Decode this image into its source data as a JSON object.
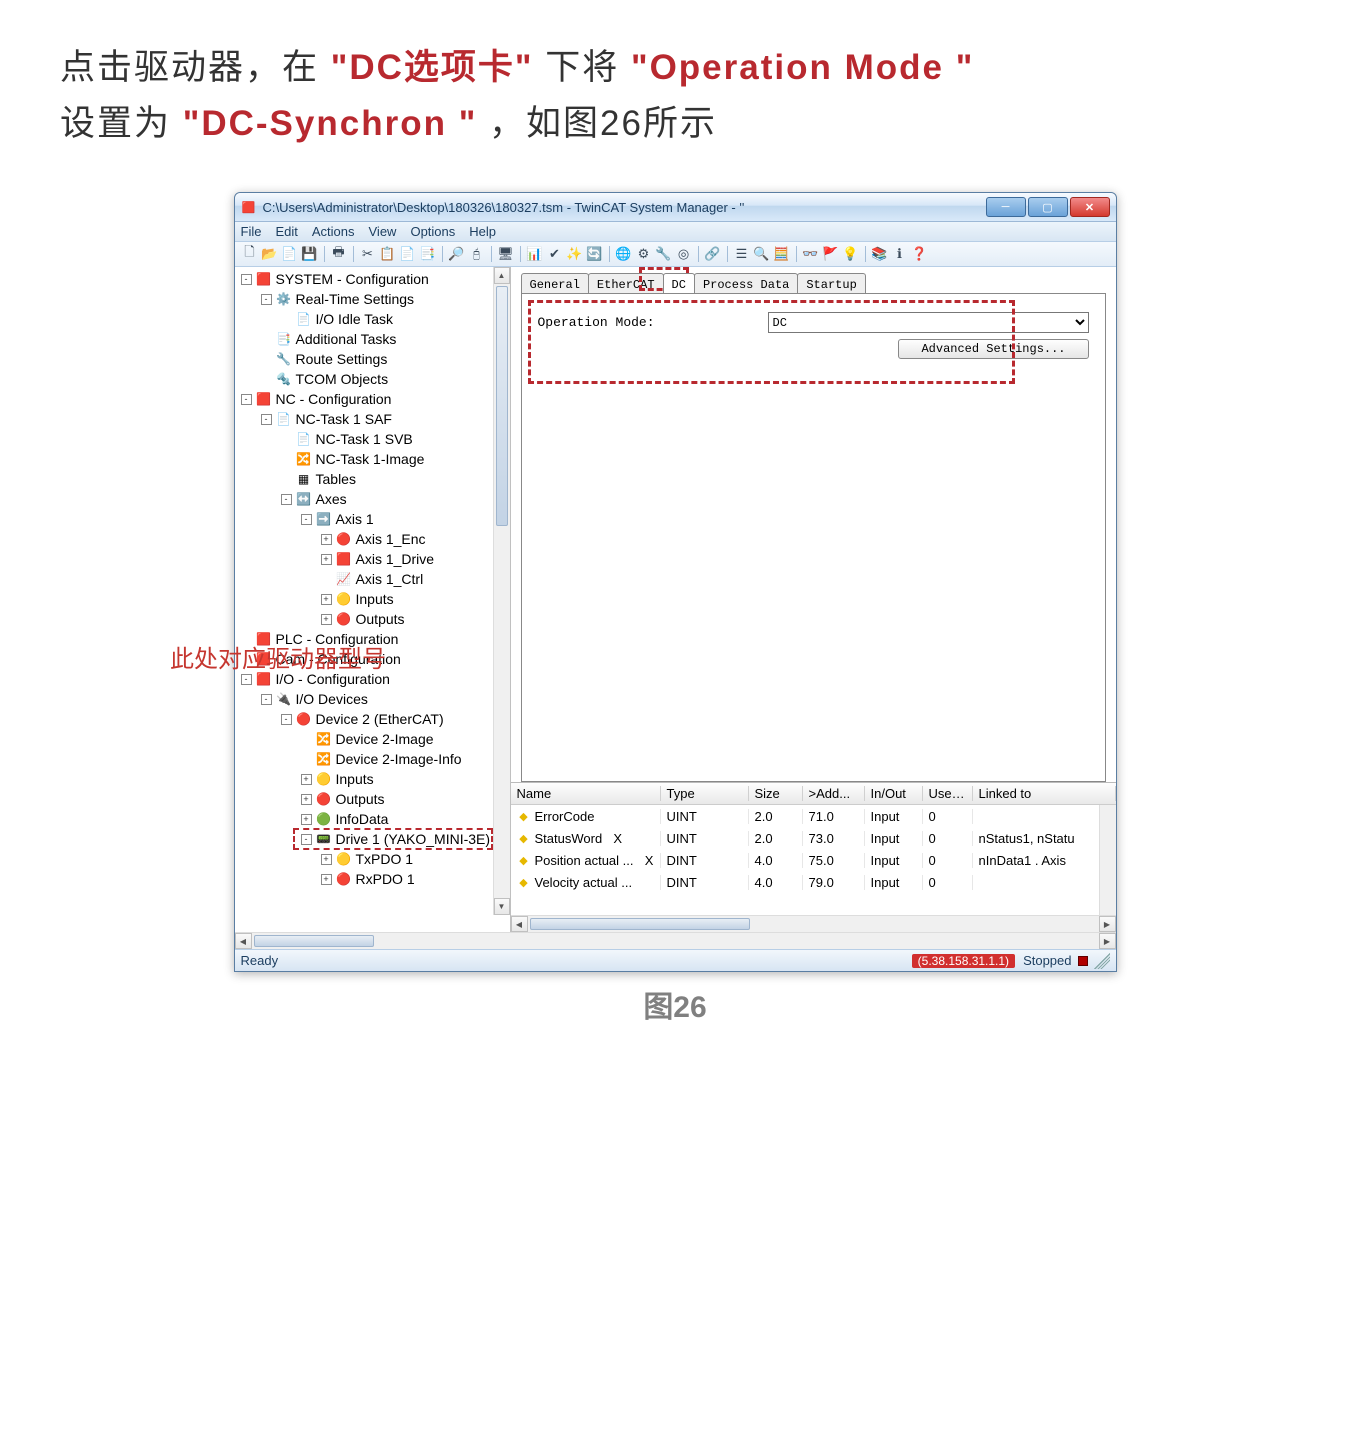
{
  "instruction": {
    "p1a": "点击驱动器，在",
    "p1b": "\"DC选项卡\"",
    "p1c": "下将",
    "p1d": "\"Operation Mode \"",
    "p2a": "设置为",
    "p2b": "\"DC-Synchron \"",
    "p2c": "，如图26所示"
  },
  "caption": "图26",
  "window": {
    "title": "C:\\Users\\Administrator\\Desktop\\180326\\180327.tsm - TwinCAT System Manager - ''",
    "menus": [
      "File",
      "Edit",
      "Actions",
      "View",
      "Options",
      "Help"
    ],
    "status_ready": "Ready",
    "status_addr": "(5.38.158.31.1.1)",
    "status_state": "Stopped"
  },
  "tree": [
    {
      "i": 1,
      "pm": "-",
      "icon": "🟥",
      "label": "SYSTEM - Configuration"
    },
    {
      "i": 2,
      "pm": "-",
      "icon": "⚙️",
      "label": "Real-Time Settings"
    },
    {
      "i": 3,
      "pm": "",
      "icon": "📄",
      "label": "I/O Idle Task"
    },
    {
      "i": 2,
      "pm": "",
      "icon": "📑",
      "label": "Additional Tasks"
    },
    {
      "i": 2,
      "pm": "",
      "icon": "🔧",
      "label": "Route Settings"
    },
    {
      "i": 2,
      "pm": "",
      "icon": "🔩",
      "label": "TCOM Objects"
    },
    {
      "i": 1,
      "pm": "-",
      "icon": "🟥",
      "label": "NC - Configuration"
    },
    {
      "i": 2,
      "pm": "-",
      "icon": "📄",
      "label": "NC-Task 1 SAF"
    },
    {
      "i": 3,
      "pm": "",
      "icon": "📄",
      "label": "NC-Task 1 SVB"
    },
    {
      "i": 3,
      "pm": "",
      "icon": "🔀",
      "label": "NC-Task 1-Image"
    },
    {
      "i": 3,
      "pm": "",
      "icon": "▦",
      "label": "Tables"
    },
    {
      "i": 3,
      "pm": "-",
      "icon": "↔️",
      "label": "Axes"
    },
    {
      "i": 4,
      "pm": "-",
      "icon": "➡️",
      "label": "Axis 1"
    },
    {
      "i": 5,
      "pm": "+",
      "icon": "🔴",
      "label": "Axis 1_Enc"
    },
    {
      "i": 5,
      "pm": "+",
      "icon": "🟥",
      "label": "Axis 1_Drive"
    },
    {
      "i": 5,
      "pm": "",
      "icon": "📈",
      "label": "Axis 1_Ctrl"
    },
    {
      "i": 5,
      "pm": "+",
      "icon": "🟡",
      "label": "Inputs"
    },
    {
      "i": 5,
      "pm": "+",
      "icon": "🔴",
      "label": "Outputs"
    },
    {
      "i": 1,
      "pm": "",
      "icon": "🟥",
      "label": "PLC - Configuration"
    },
    {
      "i": 1,
      "pm": "",
      "icon": "🟥",
      "label": "Cam - Configuration"
    },
    {
      "i": 1,
      "pm": "-",
      "icon": "🟥",
      "label": "I/O - Configuration"
    },
    {
      "i": 2,
      "pm": "-",
      "icon": "🔌",
      "label": "I/O Devices"
    },
    {
      "i": 3,
      "pm": "-",
      "icon": "🔴",
      "label": "Device 2 (EtherCAT)"
    },
    {
      "i": 4,
      "pm": "",
      "icon": "🔀",
      "label": "Device 2-Image"
    },
    {
      "i": 4,
      "pm": "",
      "icon": "🔀",
      "label": "Device 2-Image-Info"
    },
    {
      "i": 4,
      "pm": "+",
      "icon": "🟡",
      "label": "Inputs"
    },
    {
      "i": 4,
      "pm": "+",
      "icon": "🔴",
      "label": "Outputs"
    },
    {
      "i": 4,
      "pm": "+",
      "icon": "🟢",
      "label": "InfoData"
    },
    {
      "i": 4,
      "pm": "-",
      "icon": "📟",
      "label": "Drive 1 (YAKO_MINI-3E)",
      "highlight": true
    },
    {
      "i": 5,
      "pm": "+",
      "icon": "🟡",
      "label": "TxPDO 1"
    },
    {
      "i": 5,
      "pm": "+",
      "icon": "🔴",
      "label": "RxPDO 1"
    }
  ],
  "tabs": [
    "General",
    "EtherCAT",
    "DC",
    "Process Data",
    "Startup"
  ],
  "active_tab_index": 2,
  "dc_panel": {
    "op_label": "Operation Mode:",
    "op_value": "DC",
    "adv_btn": "Advanced Settings..."
  },
  "grid": {
    "headers": [
      "Name",
      "Type",
      "Size",
      ">Add...",
      "In/Out",
      "User...",
      "Linked to"
    ],
    "rows": [
      {
        "icon": "◆",
        "name": "ErrorCode",
        "x": "",
        "type": "UINT",
        "size": "2.0",
        "addr": "71.0",
        "io": "Input",
        "user": "0",
        "link": ""
      },
      {
        "icon": "◆",
        "name": "StatusWord",
        "x": "X",
        "type": "UINT",
        "size": "2.0",
        "addr": "73.0",
        "io": "Input",
        "user": "0",
        "link": "nStatus1, nStatu"
      },
      {
        "icon": "◆",
        "name": "Position actual ...",
        "x": "X",
        "type": "DINT",
        "size": "4.0",
        "addr": "75.0",
        "io": "Input",
        "user": "0",
        "link": "nInData1 . Axis"
      },
      {
        "icon": "◆",
        "name": "Velocity actual ...",
        "x": "",
        "type": "DINT",
        "size": "4.0",
        "addr": "79.0",
        "io": "Input",
        "user": "0",
        "link": ""
      }
    ]
  },
  "annotation_text": "此处对应驱动器型号"
}
